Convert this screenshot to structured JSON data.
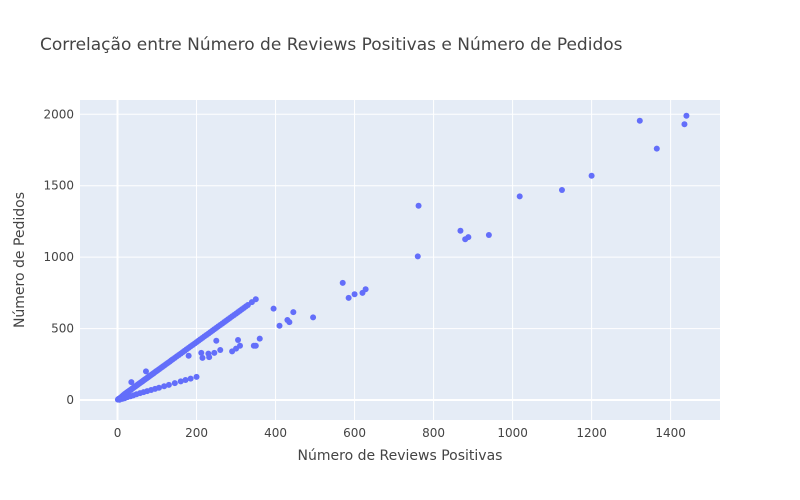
{
  "chart_data": {
    "type": "scatter",
    "title": "Correlação entre Número de Reviews Positivas e Número de Pedidos",
    "xlabel": "Número de Reviews Positivas",
    "ylabel": "Número de Pedidos",
    "xlim": [
      -95,
      1525
    ],
    "ylim": [
      -140,
      2100
    ],
    "xticks": [
      0,
      200,
      400,
      600,
      800,
      1000,
      1200,
      1400
    ],
    "yticks": [
      0,
      500,
      1000,
      1500,
      2000
    ],
    "grid": true,
    "legend": "none",
    "colors": {
      "marker": "#636efa",
      "plot_bg": "#e5ecf6",
      "grid": "#ffffff",
      "text": "#444444"
    },
    "series": [
      {
        "x": [
          1,
          2,
          3,
          4,
          5,
          6,
          7,
          8,
          9,
          10,
          11,
          12,
          13,
          14,
          15,
          16,
          17,
          18,
          19,
          20,
          22,
          24,
          26,
          28,
          30,
          32,
          34,
          36,
          38,
          40,
          42,
          44,
          46,
          48,
          50,
          52,
          54,
          56,
          58,
          60,
          62,
          64,
          66,
          68,
          70,
          72,
          74,
          76,
          78,
          80,
          82,
          84,
          86,
          88,
          90,
          92,
          95,
          98,
          100,
          103,
          106,
          110,
          113,
          116,
          120,
          124,
          128,
          132,
          136,
          140,
          145,
          150,
          155,
          160,
          165,
          170,
          175,
          180,
          185,
          190,
          195,
          200,
          205,
          210,
          215,
          220,
          225,
          230,
          235,
          240,
          245,
          250,
          255,
          260,
          265,
          270,
          275,
          280,
          285,
          290,
          295,
          300,
          305,
          310,
          315,
          320,
          325,
          330,
          340,
          350,
          5,
          12,
          18,
          25,
          33,
          40,
          48,
          57,
          66,
          75,
          85,
          95,
          105,
          118,
          130,
          145,
          160,
          172,
          185,
          200,
          35,
          72,
          180,
          250,
          245,
          212,
          215,
          230,
          232,
          260,
          290,
          300,
          305,
          310,
          345,
          350,
          360,
          395,
          410,
          430,
          435,
          445,
          495,
          570,
          585,
          600,
          620,
          628,
          760,
          762,
          868,
          880,
          888,
          940,
          1018,
          1125,
          1200,
          1322,
          1365,
          1435,
          1440
        ],
        "y": [
          3,
          5,
          7,
          9,
          11,
          12,
          14,
          16,
          18,
          20,
          23,
          26,
          28,
          31,
          33,
          36,
          38,
          41,
          43,
          45,
          49,
          53,
          57,
          61,
          65,
          69,
          73,
          77,
          81,
          85,
          89,
          93,
          97,
          101,
          105,
          109,
          113,
          117,
          121,
          125,
          129,
          133,
          137,
          141,
          145,
          149,
          153,
          157,
          161,
          165,
          169,
          173,
          177,
          181,
          185,
          189,
          195,
          201,
          205,
          211,
          217,
          225,
          231,
          237,
          245,
          253,
          261,
          269,
          277,
          285,
          295,
          305,
          315,
          325,
          335,
          345,
          355,
          365,
          375,
          385,
          395,
          405,
          415,
          425,
          435,
          445,
          455,
          465,
          475,
          485,
          495,
          505,
          515,
          525,
          535,
          545,
          555,
          565,
          575,
          585,
          595,
          605,
          615,
          625,
          635,
          645,
          655,
          665,
          685,
          705,
          2,
          8,
          12,
          20,
          26,
          32,
          40,
          48,
          55,
          62,
          70,
          78,
          86,
          96,
          106,
          118,
          130,
          140,
          150,
          162,
          125,
          200,
          310,
          415,
          330,
          330,
          295,
          325,
          300,
          350,
          340,
          360,
          420,
          380,
          380,
          380,
          430,
          640,
          520,
          560,
          545,
          615,
          578,
          820,
          715,
          740,
          750,
          775,
          1005,
          1360,
          1185,
          1125,
          1140,
          1155,
          1425,
          1470,
          1570,
          1955,
          1760,
          1930,
          1990
        ]
      }
    ]
  }
}
